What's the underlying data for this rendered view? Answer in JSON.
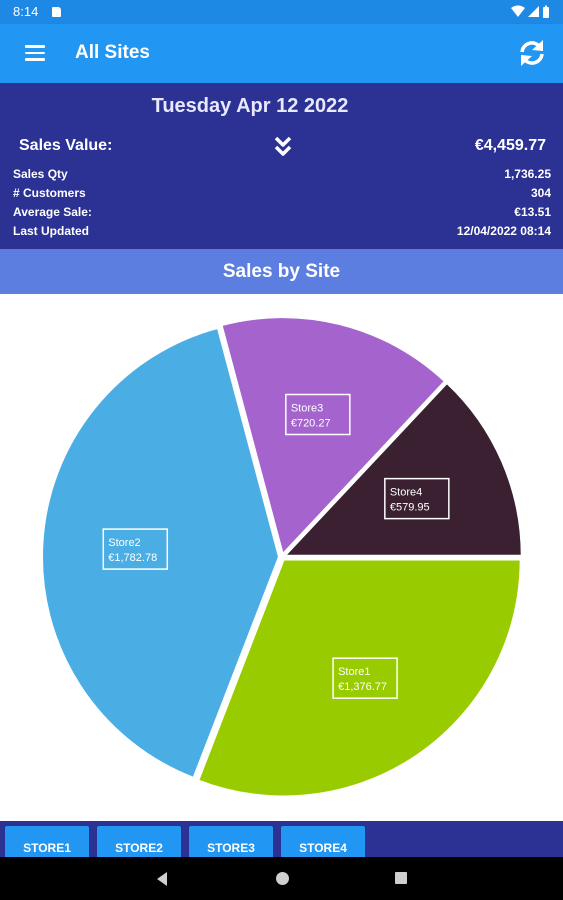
{
  "status_bar": {
    "time": "8:14"
  },
  "app_bar": {
    "title": "All Sites"
  },
  "summary": {
    "date": "Tuesday Apr 12 2022",
    "sales_value_label": "Sales Value:",
    "sales_value": "€4,459.77",
    "stats": [
      {
        "label": "Sales Qty",
        "value": "1,736.25"
      },
      {
        "label": "# Customers",
        "value": "304"
      },
      {
        "label": "Average Sale:",
        "value": "€13.51"
      },
      {
        "label": "Last Updated",
        "value": "12/04/2022 08:14"
      }
    ]
  },
  "section_title": "Sales by Site",
  "chart_data": {
    "type": "pie",
    "slices": [
      {
        "label": "Store1",
        "value_text": "€1,376.77",
        "value": 1376.77,
        "color": "#99cc00"
      },
      {
        "label": "Store2",
        "value_text": "€1,782.78",
        "value": 1782.78,
        "color": "#4aaee4"
      },
      {
        "label": "Store3",
        "value_text": "€720.27",
        "value": 720.27,
        "color": "#a463cd"
      },
      {
        "label": "Store4",
        "value_text": "€579.95",
        "value": 579.95,
        "color": "#3a2030"
      }
    ]
  },
  "tabs": [
    "STORE1",
    "STORE2",
    "STORE3",
    "STORE4"
  ],
  "colors": {
    "app_bar": "#2196f3",
    "summary_bg": "#2b3293",
    "section_header": "#5c7ee0"
  }
}
